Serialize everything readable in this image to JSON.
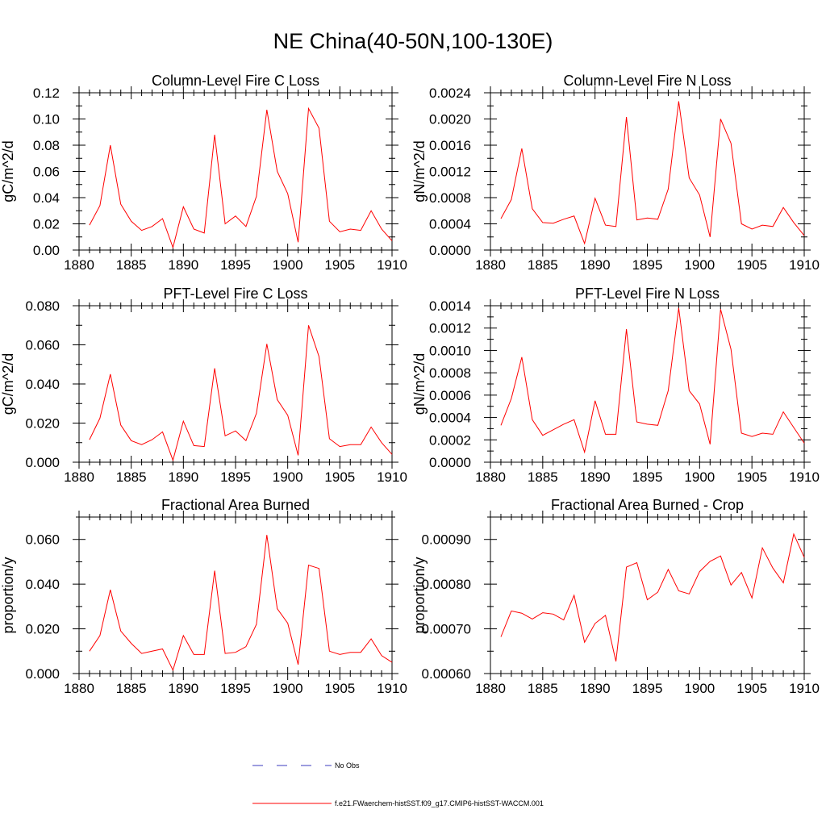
{
  "page": {
    "title": "NE China(40-50N,100-130E)"
  },
  "legend": {
    "entries": [
      {
        "label": "No Obs",
        "color": "#3b3bbf",
        "style": "dashed"
      },
      {
        "label": "f.e21.FWaerchem-histSST.f09_g17.CMIP6-histSST-WACCM.001",
        "color": "#ff0000",
        "style": "solid"
      }
    ]
  },
  "chart_data": [
    {
      "type": "line",
      "title": "Column-Level Fire C Loss",
      "xlabel": "",
      "ylabel": "gC/m^2/d",
      "xlim": [
        1880,
        1910
      ],
      "ylim": [
        0,
        0.12
      ],
      "xticks": [
        "1880",
        "1885",
        "1890",
        "1895",
        "1900",
        "1905",
        "1910"
      ],
      "yticks": [
        "0.00",
        "0.02",
        "0.04",
        "0.06",
        "0.08",
        "0.10",
        "0.12"
      ],
      "grid": false,
      "series": [
        {
          "color": "#ff0000",
          "x": [
            1881,
            1882,
            1883,
            1884,
            1885,
            1886,
            1887,
            1888,
            1889,
            1890,
            1891,
            1892,
            1893,
            1894,
            1895,
            1896,
            1897,
            1898,
            1899,
            1900,
            1901,
            1902,
            1903,
            1904,
            1905,
            1906,
            1907,
            1908,
            1909,
            1910
          ],
          "values": [
            0.019,
            0.034,
            0.08,
            0.035,
            0.022,
            0.015,
            0.018,
            0.024,
            0.002,
            0.033,
            0.016,
            0.013,
            0.088,
            0.02,
            0.026,
            0.018,
            0.041,
            0.107,
            0.06,
            0.043,
            0.006,
            0.108,
            0.093,
            0.022,
            0.014,
            0.016,
            0.015,
            0.03,
            0.016,
            0.007
          ]
        }
      ]
    },
    {
      "type": "line",
      "title": "Column-Level Fire N Loss",
      "xlabel": "",
      "ylabel": "gN/m^2/d",
      "xlim": [
        1880,
        1910
      ],
      "ylim": [
        0,
        0.0024
      ],
      "xticks": [
        "1880",
        "1885",
        "1890",
        "1895",
        "1900",
        "1905",
        "1910"
      ],
      "yticks": [
        "0.0000",
        "0.0004",
        "0.0008",
        "0.0012",
        "0.0016",
        "0.0020",
        "0.0024"
      ],
      "grid": false,
      "series": [
        {
          "color": "#ff0000",
          "x": [
            1881,
            1882,
            1883,
            1884,
            1885,
            1886,
            1887,
            1888,
            1889,
            1890,
            1891,
            1892,
            1893,
            1894,
            1895,
            1896,
            1897,
            1898,
            1899,
            1900,
            1901,
            1902,
            1903,
            1904,
            1905,
            1906,
            1907,
            1908,
            1909,
            1910
          ],
          "values": [
            0.00048,
            0.00077,
            0.00155,
            0.00063,
            0.00042,
            0.00041,
            0.00047,
            0.00052,
            0.0001,
            0.00079,
            0.00038,
            0.00036,
            0.00203,
            0.00046,
            0.00049,
            0.00047,
            0.00093,
            0.00227,
            0.0011,
            0.00084,
            0.0002,
            0.002,
            0.00163,
            0.0004,
            0.00032,
            0.00038,
            0.00036,
            0.00065,
            0.00042,
            0.00022
          ]
        }
      ]
    },
    {
      "type": "line",
      "title": "PFT-Level Fire C Loss",
      "xlabel": "",
      "ylabel": "gC/m^2/d",
      "xlim": [
        1880,
        1910
      ],
      "ylim": [
        0,
        0.08
      ],
      "xticks": [
        "1880",
        "1885",
        "1890",
        "1895",
        "1900",
        "1905",
        "1910"
      ],
      "yticks": [
        "0.000",
        "0.020",
        "0.040",
        "0.060",
        "0.080"
      ],
      "grid": false,
      "series": [
        {
          "color": "#ff0000",
          "x": [
            1881,
            1882,
            1883,
            1884,
            1885,
            1886,
            1887,
            1888,
            1889,
            1890,
            1891,
            1892,
            1893,
            1894,
            1895,
            1896,
            1897,
            1898,
            1899,
            1900,
            1901,
            1902,
            1903,
            1904,
            1905,
            1906,
            1907,
            1908,
            1909,
            1910
          ],
          "values": [
            0.0115,
            0.0225,
            0.045,
            0.019,
            0.011,
            0.009,
            0.0115,
            0.0155,
            0.001,
            0.021,
            0.0085,
            0.008,
            0.048,
            0.0135,
            0.016,
            0.011,
            0.025,
            0.0605,
            0.032,
            0.024,
            0.0035,
            0.07,
            0.054,
            0.012,
            0.008,
            0.009,
            0.009,
            0.018,
            0.01,
            0.004
          ]
        }
      ]
    },
    {
      "type": "line",
      "title": "PFT-Level Fire N Loss",
      "xlabel": "",
      "ylabel": "gN/m^2/d",
      "xlim": [
        1880,
        1910
      ],
      "ylim": [
        0,
        0.0014
      ],
      "xticks": [
        "1880",
        "1885",
        "1890",
        "1895",
        "1900",
        "1905",
        "1910"
      ],
      "yticks": [
        "0.0000",
        "0.0002",
        "0.0004",
        "0.0006",
        "0.0008",
        "0.0010",
        "0.0012",
        "0.0014"
      ],
      "grid": false,
      "series": [
        {
          "color": "#ff0000",
          "x": [
            1881,
            1882,
            1883,
            1884,
            1885,
            1886,
            1887,
            1888,
            1889,
            1890,
            1891,
            1892,
            1893,
            1894,
            1895,
            1896,
            1897,
            1898,
            1899,
            1900,
            1901,
            1902,
            1903,
            1904,
            1905,
            1906,
            1907,
            1908,
            1909,
            1910
          ],
          "values": [
            0.00033,
            0.00057,
            0.00094,
            0.00038,
            0.00024,
            0.00029,
            0.00034,
            0.00038,
            9e-05,
            0.00055,
            0.00025,
            0.00025,
            0.00119,
            0.00036,
            0.00034,
            0.00033,
            0.00064,
            0.00138,
            0.00064,
            0.00052,
            0.00016,
            0.00137,
            0.00101,
            0.00026,
            0.00023,
            0.00026,
            0.00025,
            0.00045,
            0.00031,
            0.00017
          ]
        }
      ]
    },
    {
      "type": "line",
      "title": "Fractional Area Burned",
      "xlabel": "",
      "ylabel": "proportion/y",
      "xlim": [
        1880,
        1910
      ],
      "ylim": [
        0,
        0.07
      ],
      "xticks": [
        "1880",
        "1885",
        "1890",
        "1895",
        "1900",
        "1905",
        "1910"
      ],
      "yticks": [
        "0.000",
        "0.020",
        "0.040",
        "0.060"
      ],
      "grid": false,
      "series": [
        {
          "color": "#ff0000",
          "x": [
            1881,
            1882,
            1883,
            1884,
            1885,
            1886,
            1887,
            1888,
            1889,
            1890,
            1891,
            1892,
            1893,
            1894,
            1895,
            1896,
            1897,
            1898,
            1899,
            1900,
            1901,
            1902,
            1903,
            1904,
            1905,
            1906,
            1907,
            1908,
            1909,
            1910
          ],
          "values": [
            0.01,
            0.017,
            0.0375,
            0.019,
            0.0135,
            0.009,
            0.01,
            0.011,
            0.0015,
            0.017,
            0.0085,
            0.0085,
            0.046,
            0.009,
            0.0095,
            0.012,
            0.022,
            0.062,
            0.029,
            0.0225,
            0.004,
            0.0485,
            0.047,
            0.01,
            0.0085,
            0.0095,
            0.0095,
            0.0155,
            0.008,
            0.005
          ]
        }
      ]
    },
    {
      "type": "line",
      "title": "Fractional Area Burned - Crop",
      "xlabel": "",
      "ylabel": "proportion/y",
      "xlim": [
        1880,
        1910
      ],
      "ylim": [
        0.0006,
        0.00095
      ],
      "xticks": [
        "1880",
        "1885",
        "1890",
        "1895",
        "1900",
        "1905",
        "1910"
      ],
      "yticks": [
        "0.00060",
        "0.00070",
        "0.00080",
        "0.00090"
      ],
      "grid": false,
      "series": [
        {
          "color": "#ff0000",
          "x": [
            1881,
            1882,
            1883,
            1884,
            1885,
            1886,
            1887,
            1888,
            1889,
            1890,
            1891,
            1892,
            1893,
            1894,
            1895,
            1896,
            1897,
            1898,
            1899,
            1900,
            1901,
            1902,
            1903,
            1904,
            1905,
            1906,
            1907,
            1908,
            1909,
            1910
          ],
          "values": [
            0.000682,
            0.00074,
            0.000735,
            0.000722,
            0.000736,
            0.000733,
            0.00072,
            0.000775,
            0.00067,
            0.000712,
            0.00073,
            0.000627,
            0.000838,
            0.000848,
            0.000765,
            0.000782,
            0.000833,
            0.000785,
            0.000778,
            0.000828,
            0.000851,
            0.000863,
            0.000798,
            0.000826,
            0.000769,
            0.000881,
            0.000836,
            0.000803,
            0.000912,
            0.00086
          ]
        }
      ]
    }
  ]
}
